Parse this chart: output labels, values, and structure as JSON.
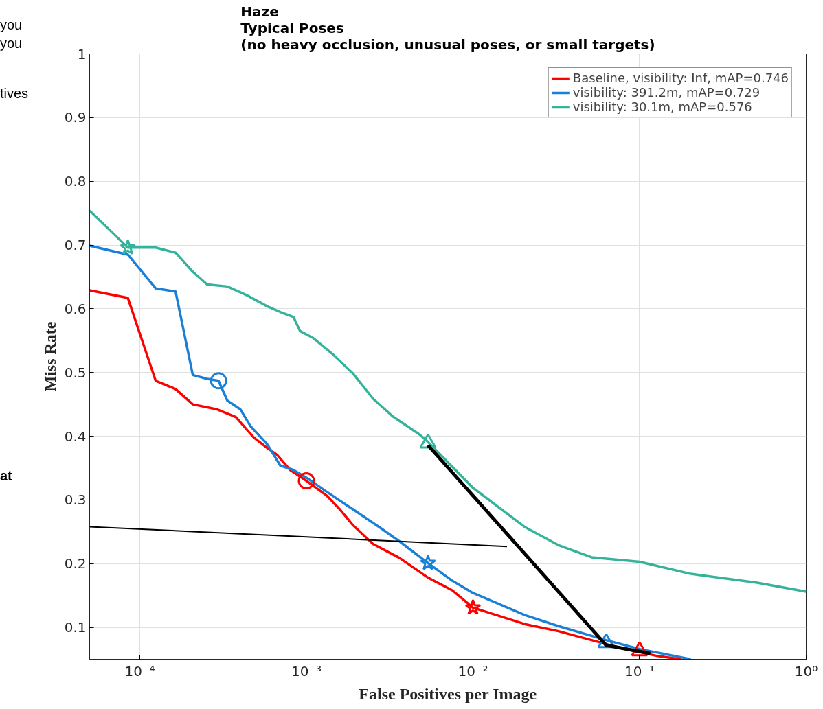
{
  "chart_data": {
    "type": "line",
    "title": "Haze\nTypical Poses\n(no heavy occlusion, unusual poses, or small targets)",
    "xlabel": "False Positives per Image",
    "ylabel": "Miss Rate",
    "log": "x",
    "grid": true,
    "legend": "top right",
    "line_style": "solid",
    "marker": "none",
    "xlim": [
      5e-05,
      1
    ],
    "ylim": [
      0.05,
      1
    ],
    "xticks": [
      {
        "value": 0.0001,
        "label": "10⁻⁴"
      },
      {
        "value": 0.001,
        "label": "10⁻³"
      },
      {
        "value": 0.01,
        "label": "10⁻²"
      },
      {
        "value": 0.1,
        "label": "10⁻¹"
      },
      {
        "value": 1,
        "label": "10⁰"
      }
    ],
    "yticks": [
      0.1,
      0.2,
      0.3,
      0.4,
      0.5,
      0.6,
      0.7,
      0.8,
      0.9,
      1
    ],
    "annotations": [
      "you",
      "you",
      "tives",
      "at"
    ],
    "series": [
      {
        "name": "Baseline, visibility: Inf, mAP=0.746",
        "color": "#ff0000",
        "x": [
          5e-05,
          8.48e-05,
          0.0001245,
          0.000164,
          0.000208,
          0.000292,
          0.000377,
          0.000483,
          0.00058,
          0.000665,
          0.000799,
          0.001,
          0.001322,
          0.00159,
          0.00191,
          0.00251,
          0.00362,
          0.00537,
          0.00753,
          0.01,
          0.0206,
          0.0326,
          0.0515,
          0.0814,
          0.1286,
          0.177
        ],
        "values": [
          0.629,
          0.617,
          0.487,
          0.474,
          0.45,
          0.442,
          0.43,
          0.398,
          0.382,
          0.371,
          0.347,
          0.33,
          0.307,
          0.285,
          0.26,
          0.231,
          0.209,
          0.178,
          0.158,
          0.131,
          0.105,
          0.094,
          0.08,
          0.066,
          0.055,
          0.05
        ]
      },
      {
        "name": "visibility: 391.2m, mAP=0.729",
        "color": "#1a7fd6",
        "x": [
          5e-05,
          8.48e-05,
          0.0001245,
          0.000164,
          0.000208,
          0.000254,
          0.000297,
          0.000335,
          0.000402,
          0.000461,
          0.00058,
          0.000697,
          0.000837,
          0.001,
          0.001322,
          0.00191,
          0.00275,
          0.00362,
          0.00537,
          0.00753,
          0.01,
          0.0206,
          0.0326,
          0.063,
          0.1,
          0.203
        ],
        "values": [
          0.699,
          0.685,
          0.632,
          0.627,
          0.496,
          0.49,
          0.487,
          0.456,
          0.442,
          0.416,
          0.388,
          0.354,
          0.347,
          0.335,
          0.313,
          0.285,
          0.257,
          0.235,
          0.201,
          0.173,
          0.154,
          0.119,
          0.102,
          0.08,
          0.066,
          0.05
        ]
      },
      {
        "name": "visibility: 30.1m, mAP=0.576",
        "color": "#34b39a",
        "x": [
          5e-05,
          8.48e-05,
          0.0001245,
          0.000164,
          0.000208,
          0.000254,
          0.000335,
          0.000441,
          0.00058,
          0.000697,
          0.000837,
          0.000916,
          0.0011,
          0.00145,
          0.00191,
          0.00251,
          0.0033,
          0.00476,
          0.00537,
          0.01,
          0.0206,
          0.0326,
          0.0515,
          0.1,
          0.203,
          0.508,
          1
        ],
        "values": [
          0.754,
          0.696,
          0.696,
          0.688,
          0.658,
          0.638,
          0.635,
          0.621,
          0.604,
          0.595,
          0.587,
          0.565,
          0.554,
          0.528,
          0.498,
          0.459,
          0.431,
          0.403,
          0.391,
          0.319,
          0.257,
          0.229,
          0.21,
          0.203,
          0.184,
          0.17,
          0.156
        ]
      },
      {
        "type": "scatter",
        "marker": "circle",
        "color": "#ff0000",
        "x": [
          0.001
        ],
        "values": [
          0.33
        ]
      },
      {
        "type": "scatter",
        "marker": "star",
        "color": "#ff0000",
        "x": [
          0.01
        ],
        "values": [
          0.131
        ]
      },
      {
        "type": "scatter",
        "marker": "triangle",
        "color": "#ff0000",
        "x": [
          0.1
        ],
        "values": [
          0.063
        ]
      },
      {
        "type": "scatter",
        "marker": "circle",
        "color": "#1a7fd6",
        "x": [
          0.000297
        ],
        "values": [
          0.487
        ]
      },
      {
        "type": "scatter",
        "marker": "star",
        "color": "#1a7fd6",
        "x": [
          0.00537
        ],
        "values": [
          0.201
        ]
      },
      {
        "type": "scatter",
        "marker": "triangle",
        "color": "#1a7fd6",
        "x": [
          0.063
        ],
        "values": [
          0.076
        ]
      },
      {
        "type": "scatter",
        "marker": "star",
        "color": "#34b39a",
        "x": [
          8.48e-05
        ],
        "values": [
          0.696
        ]
      },
      {
        "type": "scatter",
        "marker": "triangle",
        "color": "#34b39a",
        "x": [
          0.00537
        ],
        "values": [
          0.389
        ]
      },
      {
        "type": "line",
        "color": "#000000",
        "x": [
          0.00537,
          0.063,
          0.116
        ],
        "values": [
          0.386,
          0.072,
          0.059
        ]
      },
      {
        "type": "line",
        "color": "#000000",
        "x": [
          5e-05,
          0.016
        ],
        "values": [
          0.258,
          0.227
        ]
      }
    ]
  }
}
